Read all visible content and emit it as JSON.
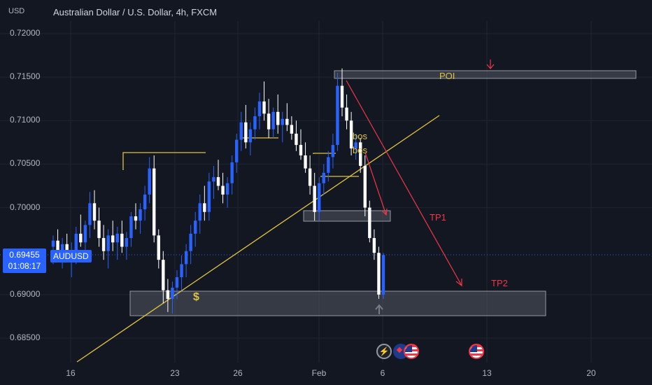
{
  "header": {
    "currency": "USD",
    "title": "Australian Dollar / U.S. Dollar, 4h, FXCM"
  },
  "price_badge": {
    "price": "0.69455",
    "countdown": "01:08:17",
    "symbol": "AUDUSD"
  },
  "annotations": {
    "poi": "POI",
    "tp1": "TP1",
    "tp2": "TP2",
    "bos1": "bos",
    "bos2": "bos",
    "liquidity": "$"
  },
  "colors": {
    "background": "#131722",
    "bull": "#2962ff",
    "bear": "#ffffff",
    "trendline": "#e0c341",
    "arrows": "#f23645",
    "zones": "#787b86"
  },
  "icons": [
    "lightning-icon",
    "au-flag-icon",
    "us-flag-icon"
  ],
  "chart_data": {
    "type": "candlestick",
    "title": "Australian Dollar / U.S. Dollar, 4h, FXCM",
    "ylabel": "USD",
    "ylim": [
      0.6838,
      0.7244
    ],
    "yticks": [
      "0.72000",
      "0.71500",
      "0.71000",
      "0.70500",
      "0.70000",
      "0.69000",
      "0.68500"
    ],
    "xticks": [
      "16",
      "23",
      "26",
      "Feb",
      "6",
      "13",
      "20"
    ],
    "last_price": 0.69455,
    "note": "candle values approximated from the screenshot",
    "candles": [
      [
        0.6955,
        0.6968,
        0.6935,
        0.6962
      ],
      [
        0.6962,
        0.6975,
        0.6948,
        0.695
      ],
      [
        0.695,
        0.6965,
        0.693,
        0.6958
      ],
      [
        0.6958,
        0.697,
        0.6938,
        0.6942
      ],
      [
        0.6942,
        0.696,
        0.692,
        0.6948
      ],
      [
        0.6948,
        0.6978,
        0.6935,
        0.697
      ],
      [
        0.697,
        0.6992,
        0.6955,
        0.696
      ],
      [
        0.696,
        0.6985,
        0.6945,
        0.698
      ],
      [
        0.698,
        0.7018,
        0.6965,
        0.7005
      ],
      [
        0.7005,
        0.702,
        0.6975,
        0.6985
      ],
      [
        0.6985,
        0.7,
        0.6955,
        0.6965
      ],
      [
        0.6965,
        0.698,
        0.694,
        0.695
      ],
      [
        0.695,
        0.6975,
        0.693,
        0.6968
      ],
      [
        0.6968,
        0.6985,
        0.695,
        0.696
      ],
      [
        0.696,
        0.6978,
        0.694,
        0.697
      ],
      [
        0.697,
        0.6985,
        0.6948,
        0.6955
      ],
      [
        0.6955,
        0.6972,
        0.694,
        0.6965
      ],
      [
        0.6965,
        0.6995,
        0.6955,
        0.699
      ],
      [
        0.699,
        0.7005,
        0.6975,
        0.6985
      ],
      [
        0.6985,
        0.7005,
        0.697,
        0.6998
      ],
      [
        0.6998,
        0.7025,
        0.6985,
        0.7015
      ],
      [
        0.7015,
        0.7058,
        0.7005,
        0.7045
      ],
      [
        0.7045,
        0.706,
        0.696,
        0.6968
      ],
      [
        0.6968,
        0.6975,
        0.693,
        0.694
      ],
      [
        0.694,
        0.695,
        0.689,
        0.6905
      ],
      [
        0.6905,
        0.6918,
        0.688,
        0.6895
      ],
      [
        0.6895,
        0.6915,
        0.6878,
        0.6908
      ],
      [
        0.6908,
        0.6928,
        0.6895,
        0.692
      ],
      [
        0.692,
        0.6945,
        0.6905,
        0.6935
      ],
      [
        0.6935,
        0.6958,
        0.692,
        0.695
      ],
      [
        0.695,
        0.698,
        0.6935,
        0.697
      ],
      [
        0.697,
        0.6995,
        0.6955,
        0.6985
      ],
      [
        0.6985,
        0.7015,
        0.697,
        0.7005
      ],
      [
        0.7005,
        0.7025,
        0.6985,
        0.6995
      ],
      [
        0.6995,
        0.704,
        0.6985,
        0.703
      ],
      [
        0.703,
        0.7048,
        0.701,
        0.7035
      ],
      [
        0.7035,
        0.7055,
        0.702,
        0.7025
      ],
      [
        0.7025,
        0.704,
        0.7005,
        0.7015
      ],
      [
        0.7015,
        0.7035,
        0.7,
        0.7028
      ],
      [
        0.7028,
        0.706,
        0.7015,
        0.7052
      ],
      [
        0.7052,
        0.7085,
        0.704,
        0.7078
      ],
      [
        0.7078,
        0.711,
        0.7065,
        0.7098
      ],
      [
        0.7098,
        0.7118,
        0.7068,
        0.7075
      ],
      [
        0.7075,
        0.7098,
        0.706,
        0.709
      ],
      [
        0.709,
        0.7115,
        0.7078,
        0.7105
      ],
      [
        0.7105,
        0.7132,
        0.709,
        0.7122
      ],
      [
        0.7122,
        0.7145,
        0.71,
        0.7108
      ],
      [
        0.7108,
        0.7125,
        0.708,
        0.709
      ],
      [
        0.709,
        0.7115,
        0.708,
        0.711
      ],
      [
        0.711,
        0.713,
        0.7085,
        0.7095
      ],
      [
        0.7095,
        0.711,
        0.7075,
        0.7102
      ],
      [
        0.7102,
        0.712,
        0.7088,
        0.7095
      ],
      [
        0.7095,
        0.7105,
        0.7078,
        0.7085
      ],
      [
        0.7085,
        0.71,
        0.7065,
        0.7072
      ],
      [
        0.7072,
        0.709,
        0.7055,
        0.706
      ],
      [
        0.706,
        0.7075,
        0.704,
        0.7045
      ],
      [
        0.7045,
        0.706,
        0.7015,
        0.7025
      ],
      [
        0.7025,
        0.704,
        0.6985,
        0.6995
      ],
      [
        0.6995,
        0.7035,
        0.6985,
        0.7028
      ],
      [
        0.7028,
        0.705,
        0.7015,
        0.704
      ],
      [
        0.704,
        0.7065,
        0.703,
        0.7058
      ],
      [
        0.7058,
        0.7085,
        0.7045,
        0.7072
      ],
      [
        0.7072,
        0.7155,
        0.7065,
        0.714
      ],
      [
        0.714,
        0.716,
        0.7105,
        0.7115
      ],
      [
        0.7115,
        0.713,
        0.709,
        0.71
      ],
      [
        0.71,
        0.711,
        0.706,
        0.7068
      ],
      [
        0.7068,
        0.7085,
        0.7055,
        0.7075
      ],
      [
        0.7075,
        0.708,
        0.704,
        0.7048
      ],
      [
        0.7048,
        0.706,
        0.699,
        0.7
      ],
      [
        0.7,
        0.7008,
        0.696,
        0.6965
      ],
      [
        0.6965,
        0.6975,
        0.694,
        0.6948
      ],
      [
        0.6948,
        0.6955,
        0.6895,
        0.69
      ],
      [
        0.69,
        0.6948,
        0.6895,
        0.69455
      ]
    ]
  }
}
